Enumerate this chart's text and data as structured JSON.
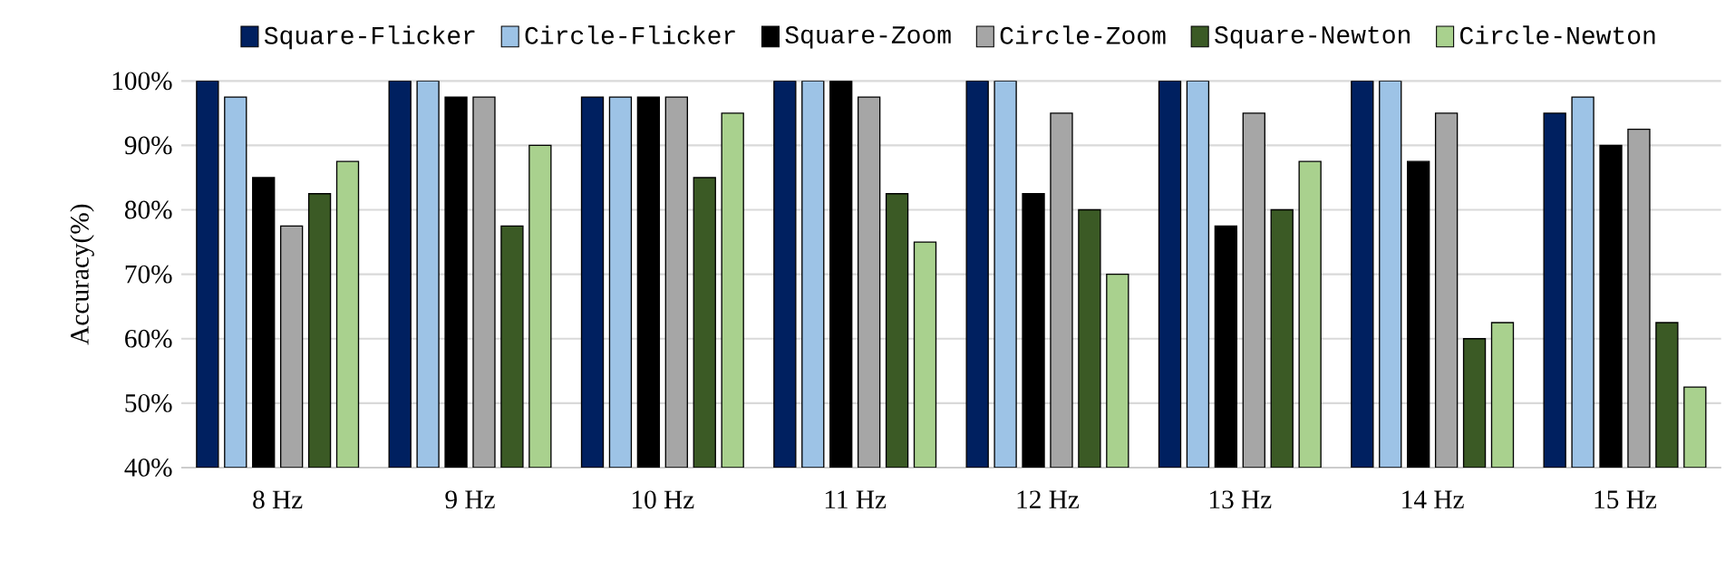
{
  "chart_data": {
    "type": "bar",
    "ylabel": "Accuracy(%)",
    "categories": [
      "8 Hz",
      "9 Hz",
      "10 Hz",
      "11 Hz",
      "12 Hz",
      "13 Hz",
      "14 Hz",
      "15 Hz"
    ],
    "series": [
      {
        "name": "Square-Flicker",
        "color": "#002060",
        "values": [
          100,
          100,
          97.5,
          100,
          100,
          100,
          100,
          95
        ]
      },
      {
        "name": "Circle-Flicker",
        "color": "#9dc3e6",
        "values": [
          97.5,
          100,
          97.5,
          100,
          100,
          100,
          100,
          97.5
        ]
      },
      {
        "name": "Square-Zoom",
        "color": "#000000",
        "values": [
          85,
          97.5,
          97.5,
          100,
          82.5,
          77.5,
          87.5,
          90
        ]
      },
      {
        "name": "Circle-Zoom",
        "color": "#a6a6a6",
        "values": [
          77.5,
          97.5,
          97.5,
          97.5,
          95,
          95,
          95,
          92.5
        ]
      },
      {
        "name": "Square-Newton",
        "color": "#3b5a25",
        "values": [
          82.5,
          77.5,
          85,
          82.5,
          80,
          80,
          60,
          62.5
        ]
      },
      {
        "name": "Circle-Newton",
        "color": "#a9d18e",
        "values": [
          87.5,
          90,
          95,
          75,
          70,
          87.5,
          62.5,
          52.5
        ]
      }
    ],
    "ylim": [
      40,
      100
    ],
    "yticks": [
      {
        "value": 40,
        "label": "40%"
      },
      {
        "value": 50,
        "label": "50%"
      },
      {
        "value": 60,
        "label": "60%"
      },
      {
        "value": 70,
        "label": "70%"
      },
      {
        "value": 80,
        "label": "80%"
      },
      {
        "value": 90,
        "label": "90%"
      },
      {
        "value": 100,
        "label": "100%"
      }
    ],
    "grid": "y",
    "legend": "top"
  }
}
